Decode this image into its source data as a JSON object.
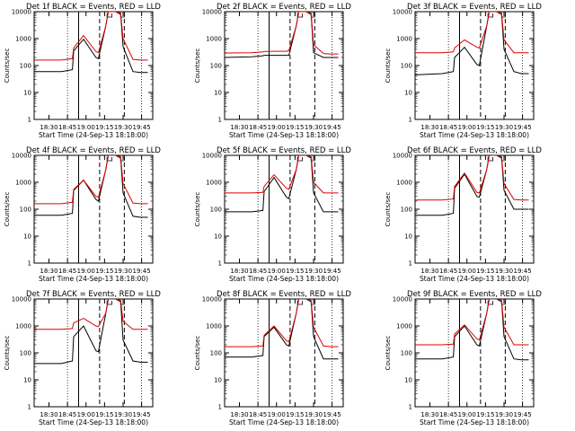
{
  "figure": {
    "xlabel": "Start Time (24-Sep-13 18:18:00)",
    "ylabel": "Counts/sec",
    "x_tick_labels": [
      "18:30",
      "18:45",
      "19:00",
      "19:15",
      "19:30",
      "19:45"
    ],
    "y_tick_labels": [
      "1",
      "10",
      "100",
      "1000",
      "10000"
    ]
  },
  "colors": {
    "events": "#000000",
    "lld": "#e00000",
    "axes": "#000000"
  },
  "chart_data": [
    {
      "type": "line",
      "title": "Det 1f BLACK = Events, RED = LLD",
      "xlabel": "Start Time (24-Sep-13 18:18:00)",
      "ylabel": "Counts/sec",
      "x_tick_labels": [
        "18:30",
        "18:45",
        "19:00",
        "19:15",
        "19:30",
        "19:45"
      ],
      "ylim": [
        1,
        10000
      ],
      "yscale": "log",
      "series": [
        {
          "name": "Events",
          "color": "#000000",
          "x": [
            0,
            22,
            31,
            32,
            40,
            50,
            52,
            58,
            60,
            66,
            70,
            72,
            80,
            86,
            92
          ],
          "y": [
            60,
            60,
            70,
            350,
            950,
            200,
            180,
            3000,
            10000,
            10000,
            8000,
            500,
            60,
            55,
            55
          ]
        },
        {
          "name": "LLD",
          "color": "#e00000",
          "x": [
            0,
            22,
            31,
            32,
            40,
            50,
            52,
            58,
            60,
            66,
            70,
            72,
            80,
            86,
            92
          ],
          "y": [
            160,
            160,
            180,
            450,
            1300,
            330,
            300,
            3000,
            10000,
            10000,
            9000,
            1000,
            170,
            160,
            160
          ]
        }
      ]
    },
    {
      "type": "line",
      "title": "Det 2f BLACK = Events, RED = LLD",
      "xlabel": "Start Time (24-Sep-13 18:18:00)",
      "ylabel": "Counts/sec",
      "x_tick_labels": [
        "18:30",
        "18:45",
        "19:00",
        "19:15",
        "19:30",
        "19:45"
      ],
      "ylim": [
        1,
        10000
      ],
      "yscale": "log",
      "series": [
        {
          "name": "Events",
          "color": "#000000",
          "x": [
            0,
            22,
            31,
            32,
            40,
            50,
            52,
            58,
            60,
            66,
            70,
            72,
            80,
            86,
            92
          ],
          "y": [
            200,
            210,
            230,
            240,
            240,
            240,
            240,
            3000,
            10000,
            10000,
            8000,
            300,
            200,
            200,
            200
          ]
        },
        {
          "name": "LLD",
          "color": "#e00000",
          "x": [
            0,
            22,
            31,
            32,
            40,
            50,
            52,
            58,
            60,
            66,
            70,
            72,
            80,
            86,
            92
          ],
          "y": [
            290,
            300,
            320,
            330,
            340,
            340,
            360,
            3000,
            10000,
            10000,
            9000,
            600,
            280,
            270,
            270
          ]
        }
      ]
    },
    {
      "type": "line",
      "title": "Det 3f BLACK = Events, RED = LLD",
      "xlabel": "Start Time (24-Sep-13 18:18:00)",
      "ylabel": "Counts/sec",
      "x_tick_labels": [
        "18:30",
        "18:45",
        "19:00",
        "19:15",
        "19:30",
        "19:45"
      ],
      "ylim": [
        1,
        10000
      ],
      "yscale": "log",
      "series": [
        {
          "name": "Events",
          "color": "#000000",
          "x": [
            0,
            22,
            31,
            32,
            40,
            50,
            52,
            58,
            60,
            66,
            70,
            72,
            80,
            86,
            92
          ],
          "y": [
            45,
            50,
            60,
            200,
            480,
            110,
            100,
            3000,
            10000,
            10000,
            8000,
            400,
            60,
            50,
            50
          ]
        },
        {
          "name": "LLD",
          "color": "#e00000",
          "x": [
            0,
            22,
            31,
            32,
            40,
            50,
            52,
            58,
            60,
            66,
            70,
            72,
            80,
            86,
            92
          ],
          "y": [
            300,
            300,
            320,
            450,
            900,
            480,
            450,
            3000,
            10000,
            10000,
            9000,
            900,
            300,
            300,
            300
          ]
        }
      ]
    },
    {
      "type": "line",
      "title": "Det 4f BLACK = Events, RED = LLD",
      "xlabel": "Start Time (24-Sep-13 18:18:00)",
      "ylabel": "Counts/sec",
      "x_tick_labels": [
        "18:30",
        "18:45",
        "19:00",
        "19:15",
        "19:30",
        "19:45"
      ],
      "ylim": [
        1,
        10000
      ],
      "yscale": "log",
      "series": [
        {
          "name": "Events",
          "color": "#000000",
          "x": [
            0,
            22,
            31,
            32,
            40,
            50,
            52,
            58,
            60,
            66,
            70,
            72,
            80,
            86,
            92
          ],
          "y": [
            60,
            60,
            70,
            500,
            1200,
            230,
            200,
            3000,
            10000,
            10000,
            8000,
            400,
            55,
            50,
            50
          ]
        },
        {
          "name": "LLD",
          "color": "#e00000",
          "x": [
            0,
            22,
            31,
            32,
            40,
            50,
            52,
            58,
            60,
            66,
            70,
            72,
            80,
            86,
            92
          ],
          "y": [
            160,
            160,
            180,
            550,
            1200,
            300,
            280,
            3000,
            10000,
            10000,
            9000,
            900,
            170,
            160,
            160
          ]
        }
      ]
    },
    {
      "type": "line",
      "title": "Det 5f BLACK = Events, RED = LLD",
      "xlabel": "Start Time (24-Sep-13 18:18:00)",
      "ylabel": "Counts/sec",
      "x_tick_labels": [
        "18:30",
        "18:45",
        "19:00",
        "19:15",
        "19:30",
        "19:45"
      ],
      "ylim": [
        1,
        10000
      ],
      "yscale": "log",
      "series": [
        {
          "name": "Events",
          "color": "#000000",
          "x": [
            0,
            22,
            31,
            32,
            40,
            50,
            52,
            58,
            60,
            66,
            70,
            72,
            80,
            86,
            92
          ],
          "y": [
            80,
            80,
            90,
            450,
            1500,
            280,
            250,
            3000,
            10000,
            10000,
            8000,
            400,
            80,
            80,
            80
          ]
        },
        {
          "name": "LLD",
          "color": "#e00000",
          "x": [
            0,
            22,
            31,
            32,
            40,
            50,
            52,
            58,
            60,
            66,
            70,
            72,
            80,
            86,
            92
          ],
          "y": [
            400,
            400,
            420,
            700,
            1900,
            600,
            550,
            3000,
            10000,
            10000,
            9000,
            1000,
            400,
            400,
            400
          ]
        }
      ]
    },
    {
      "type": "line",
      "title": "Det 6f BLACK = Events, RED = LLD",
      "xlabel": "Start Time (24-Sep-13 18:18:00)",
      "ylabel": "Counts/sec",
      "x_tick_labels": [
        "18:30",
        "18:45",
        "19:00",
        "19:15",
        "19:30",
        "19:45"
      ],
      "ylim": [
        1,
        10000
      ],
      "yscale": "log",
      "series": [
        {
          "name": "Events",
          "color": "#000000",
          "x": [
            0,
            22,
            31,
            32,
            40,
            50,
            52,
            58,
            60,
            66,
            70,
            72,
            80,
            86,
            92
          ],
          "y": [
            60,
            60,
            70,
            600,
            2000,
            300,
            280,
            3000,
            10000,
            10000,
            8000,
            500,
            100,
            100,
            100
          ]
        },
        {
          "name": "LLD",
          "color": "#e00000",
          "x": [
            0,
            22,
            31,
            32,
            40,
            50,
            52,
            58,
            60,
            66,
            70,
            72,
            80,
            86,
            92
          ],
          "y": [
            220,
            220,
            240,
            700,
            2200,
            420,
            400,
            3000,
            10000,
            10000,
            9000,
            900,
            230,
            220,
            220
          ]
        }
      ]
    },
    {
      "type": "line",
      "title": "Det 7f BLACK = Events, RED = LLD",
      "xlabel": "Start Time (24-Sep-13 18:18:00)",
      "ylabel": "Counts/sec",
      "x_tick_labels": [
        "18:30",
        "18:45",
        "19:00",
        "19:15",
        "19:30",
        "19:45"
      ],
      "ylim": [
        1,
        10000
      ],
      "yscale": "log",
      "series": [
        {
          "name": "Events",
          "color": "#000000",
          "x": [
            0,
            22,
            31,
            32,
            40,
            50,
            52,
            58,
            60,
            66,
            70,
            72,
            80,
            86,
            92
          ],
          "y": [
            40,
            40,
            50,
            400,
            1000,
            120,
            110,
            3000,
            10000,
            10000,
            8000,
            300,
            50,
            45,
            45
          ]
        },
        {
          "name": "LLD",
          "color": "#e00000",
          "x": [
            0,
            22,
            31,
            32,
            40,
            50,
            52,
            58,
            60,
            66,
            70,
            72,
            80,
            86,
            92
          ],
          "y": [
            750,
            750,
            800,
            1300,
            1900,
            1000,
            950,
            3000,
            10000,
            10000,
            9000,
            1500,
            750,
            750,
            750
          ]
        }
      ]
    },
    {
      "type": "line",
      "title": "Det 8f BLACK = Events, RED = LLD",
      "xlabel": "Start Time (24-Sep-13 18:18:00)",
      "ylabel": "Counts/sec",
      "x_tick_labels": [
        "18:30",
        "18:45",
        "19:00",
        "19:15",
        "19:30",
        "19:45"
      ],
      "ylim": [
        1,
        10000
      ],
      "yscale": "log",
      "series": [
        {
          "name": "Events",
          "color": "#000000",
          "x": [
            0,
            22,
            31,
            32,
            40,
            50,
            52,
            58,
            60,
            66,
            70,
            72,
            80,
            86,
            92
          ],
          "y": [
            70,
            70,
            80,
            400,
            900,
            200,
            180,
            3000,
            10000,
            10000,
            8000,
            400,
            60,
            60,
            60
          ]
        },
        {
          "name": "LLD",
          "color": "#e00000",
          "x": [
            0,
            22,
            31,
            32,
            40,
            50,
            52,
            58,
            60,
            66,
            70,
            72,
            80,
            86,
            92
          ],
          "y": [
            170,
            170,
            180,
            450,
            1000,
            280,
            260,
            3000,
            10000,
            10000,
            9000,
            900,
            180,
            170,
            170
          ]
        }
      ]
    },
    {
      "type": "line",
      "title": "Det 9f BLACK = Events, RED = LLD",
      "xlabel": "Start Time (24-Sep-13 18:18:00)",
      "ylabel": "Counts/sec",
      "x_tick_labels": [
        "18:30",
        "18:45",
        "19:00",
        "19:15",
        "19:30",
        "19:45"
      ],
      "ylim": [
        1,
        10000
      ],
      "yscale": "log",
      "series": [
        {
          "name": "Events",
          "color": "#000000",
          "x": [
            0,
            22,
            31,
            32,
            40,
            50,
            52,
            58,
            60,
            66,
            70,
            72,
            80,
            86,
            92
          ],
          "y": [
            60,
            60,
            70,
            400,
            1000,
            200,
            180,
            3000,
            10000,
            10000,
            8000,
            400,
            60,
            55,
            55
          ]
        },
        {
          "name": "LLD",
          "color": "#e00000",
          "x": [
            0,
            22,
            31,
            32,
            40,
            50,
            52,
            58,
            60,
            66,
            70,
            72,
            80,
            86,
            92
          ],
          "y": [
            200,
            200,
            210,
            500,
            1100,
            330,
            300,
            3000,
            10000,
            10000,
            9000,
            900,
            200,
            200,
            200
          ]
        }
      ]
    }
  ]
}
